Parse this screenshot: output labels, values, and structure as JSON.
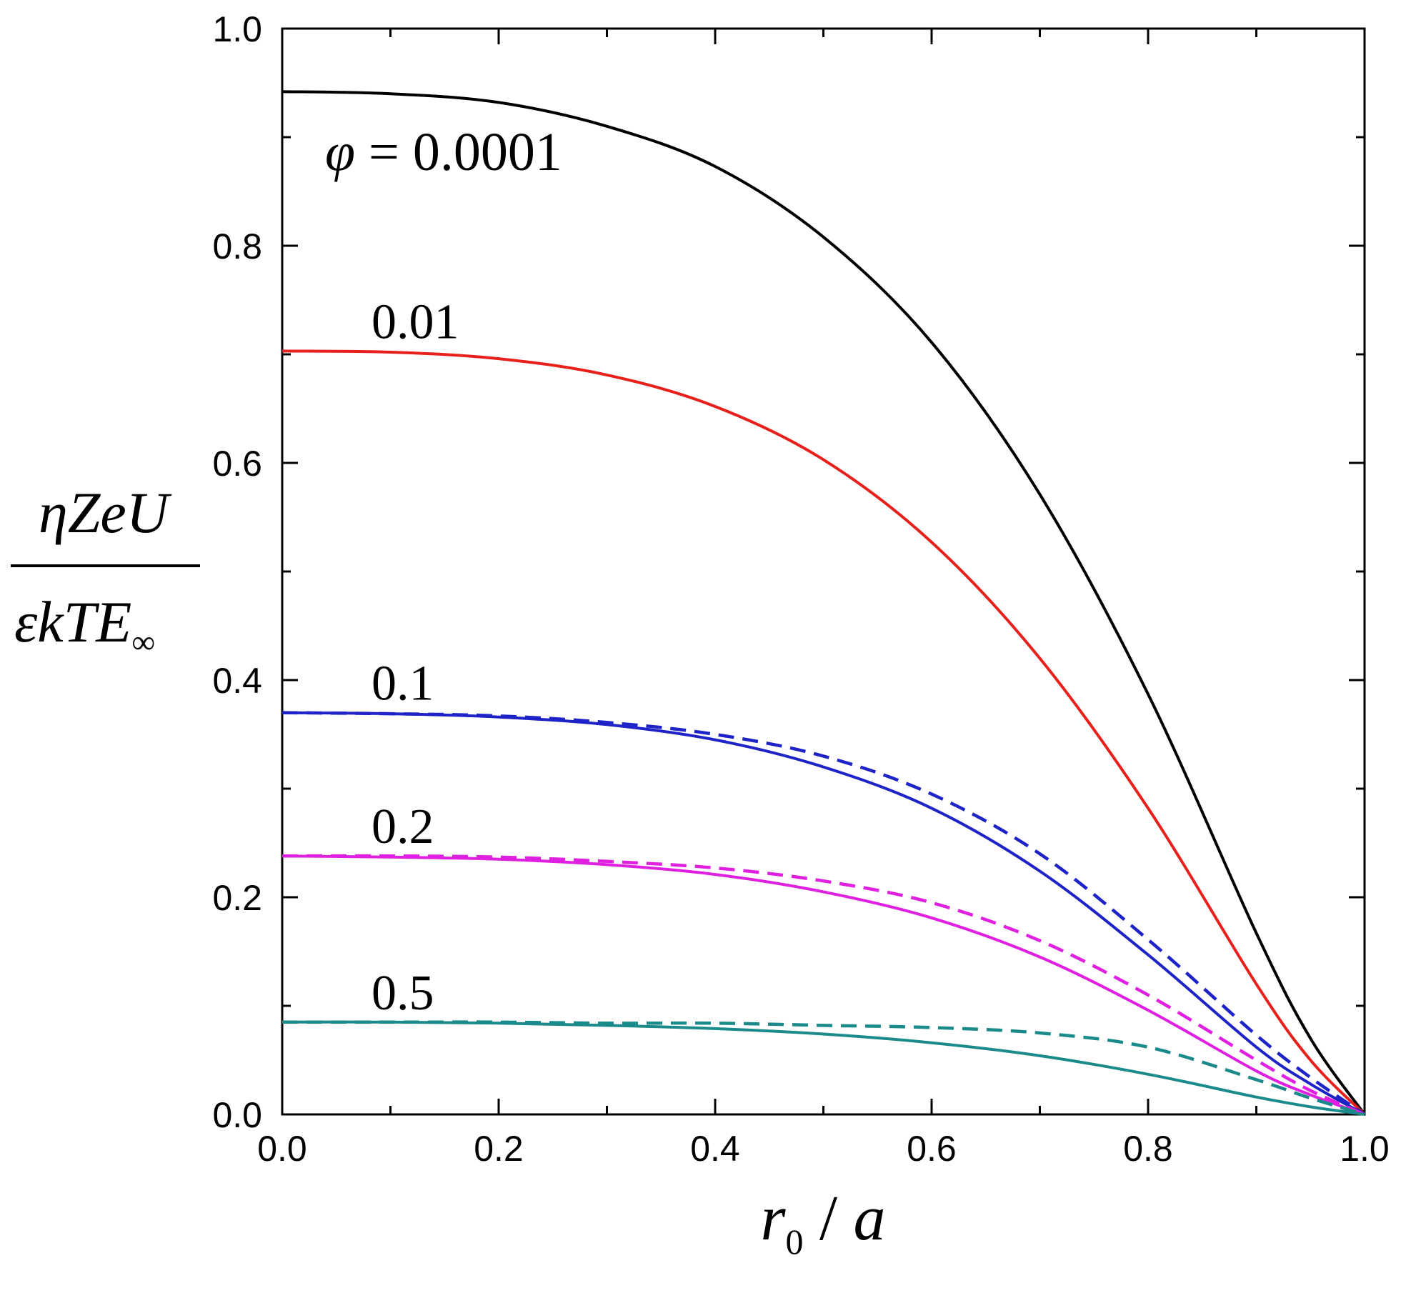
{
  "chart_data": {
    "type": "line",
    "title": "",
    "xlabel": {
      "var": "r",
      "sub": "0",
      "sep": " / ",
      "den": "a"
    },
    "ylabel": {
      "numerator": "ηZeU",
      "denominator": "εkTE",
      "denominator_sub": "∞"
    },
    "xlim": [
      0,
      1
    ],
    "ylim": [
      0,
      1
    ],
    "xticks": [
      "0.0",
      "0.2",
      "0.4",
      "0.6",
      "0.8",
      "1.0"
    ],
    "yticks": [
      "0.0",
      "0.2",
      "0.4",
      "0.6",
      "0.8",
      "1.0"
    ],
    "phi_symbol": "φ",
    "phi_equals": " = ",
    "x": [
      0,
      0.1,
      0.2,
      0.3,
      0.4,
      0.5,
      0.6,
      0.7,
      0.8,
      0.9,
      0.95,
      1.0
    ],
    "series": [
      {
        "name": "0.0001",
        "label": "0.0001",
        "color": "#000000",
        "style": "solid",
        "values": [
          0.942,
          0.94,
          0.932,
          0.91,
          0.873,
          0.808,
          0.711,
          0.571,
          0.387,
          0.167,
          0.07,
          0.0
        ]
      },
      {
        "name": "0.01",
        "label": "0.01",
        "color": "#e8201c",
        "style": "solid",
        "values": [
          0.703,
          0.702,
          0.696,
          0.681,
          0.652,
          0.603,
          0.527,
          0.42,
          0.282,
          0.12,
          0.05,
          0.0
        ]
      },
      {
        "name": "0.1",
        "label": "0.1",
        "color": "#1e23c8",
        "style": "solid",
        "values": [
          0.37,
          0.369,
          0.366,
          0.359,
          0.345,
          0.32,
          0.282,
          0.224,
          0.147,
          0.062,
          0.028,
          0.0
        ]
      },
      {
        "name": "0.1 dashed",
        "label": "",
        "color": "#1e23c8",
        "style": "dashed",
        "values": [
          0.37,
          0.369,
          0.367,
          0.361,
          0.35,
          0.33,
          0.295,
          0.24,
          0.161,
          0.073,
          0.034,
          0.0
        ]
      },
      {
        "name": "0.2",
        "label": "0.2",
        "color": "#e020e0",
        "style": "solid",
        "values": [
          0.238,
          0.237,
          0.235,
          0.23,
          0.221,
          0.205,
          0.181,
          0.145,
          0.096,
          0.04,
          0.018,
          0.0
        ]
      },
      {
        "name": "0.2 dashed",
        "label": "",
        "color": "#e020e0",
        "style": "dashed",
        "values": [
          0.238,
          0.238,
          0.237,
          0.233,
          0.227,
          0.215,
          0.195,
          0.16,
          0.11,
          0.05,
          0.022,
          0.0
        ]
      },
      {
        "name": "0.5",
        "label": "0.5",
        "color": "#1a8a8a",
        "style": "solid",
        "values": [
          0.085,
          0.085,
          0.084,
          0.082,
          0.079,
          0.074,
          0.066,
          0.054,
          0.037,
          0.016,
          0.007,
          0.0
        ]
      },
      {
        "name": "0.5 dashed",
        "label": "",
        "color": "#1a8a8a",
        "style": "dashed",
        "values": [
          0.085,
          0.085,
          0.085,
          0.084,
          0.084,
          0.082,
          0.08,
          0.075,
          0.062,
          0.032,
          0.015,
          0.0
        ]
      }
    ]
  }
}
